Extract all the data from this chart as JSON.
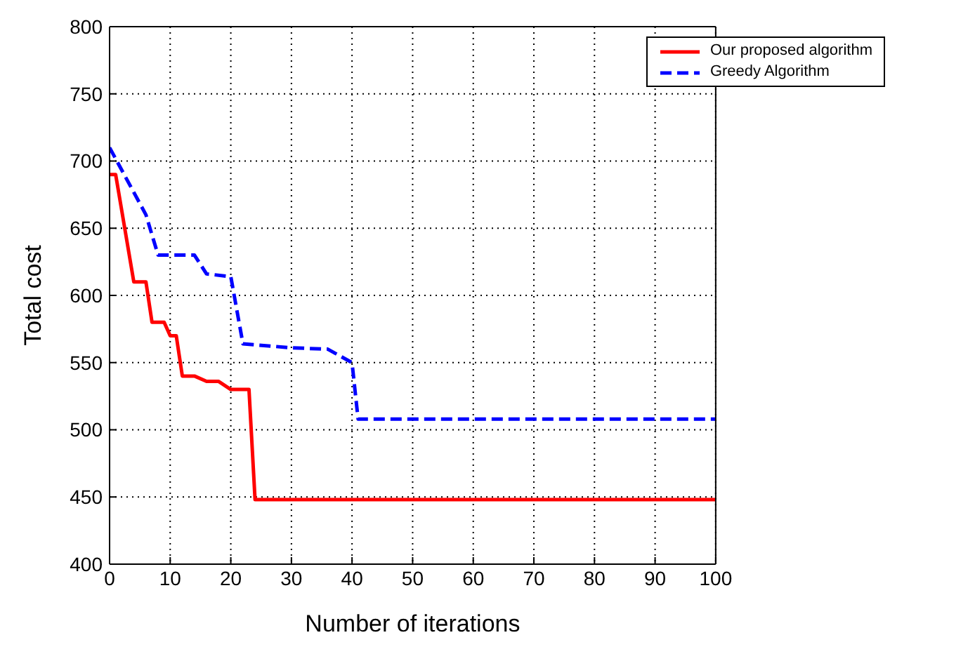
{
  "chart_data": {
    "type": "line",
    "xlabel": "Number of iterations",
    "ylabel": "Total cost",
    "xlim": [
      0,
      100
    ],
    "xticks": [
      0,
      10,
      20,
      30,
      40,
      50,
      60,
      70,
      80,
      90,
      100
    ],
    "ylim": [
      400,
      800
    ],
    "yticks": [
      400,
      450,
      500,
      550,
      600,
      650,
      700,
      750,
      800
    ],
    "grid": true,
    "legend": "top right",
    "series": [
      {
        "name": "Our proposed algorithm",
        "color": "#ff0000",
        "line_style": "solid",
        "x": [
          0,
          1,
          4,
          6,
          7,
          9,
          10,
          11,
          12,
          14,
          16,
          18,
          20,
          23,
          24,
          100
        ],
        "values": [
          690,
          690,
          610,
          610,
          580,
          580,
          570,
          570,
          540,
          540,
          536,
          536,
          530,
          530,
          448,
          448
        ]
      },
      {
        "name": "Greedy Algorithm",
        "color": "#0000ff",
        "line_style": "dashed",
        "x": [
          0,
          6,
          8,
          14,
          16,
          20,
          22,
          30,
          36,
          40,
          41,
          100
        ],
        "values": [
          710,
          660,
          630,
          630,
          616,
          614,
          564,
          561,
          560,
          550,
          508,
          508
        ]
      }
    ]
  }
}
